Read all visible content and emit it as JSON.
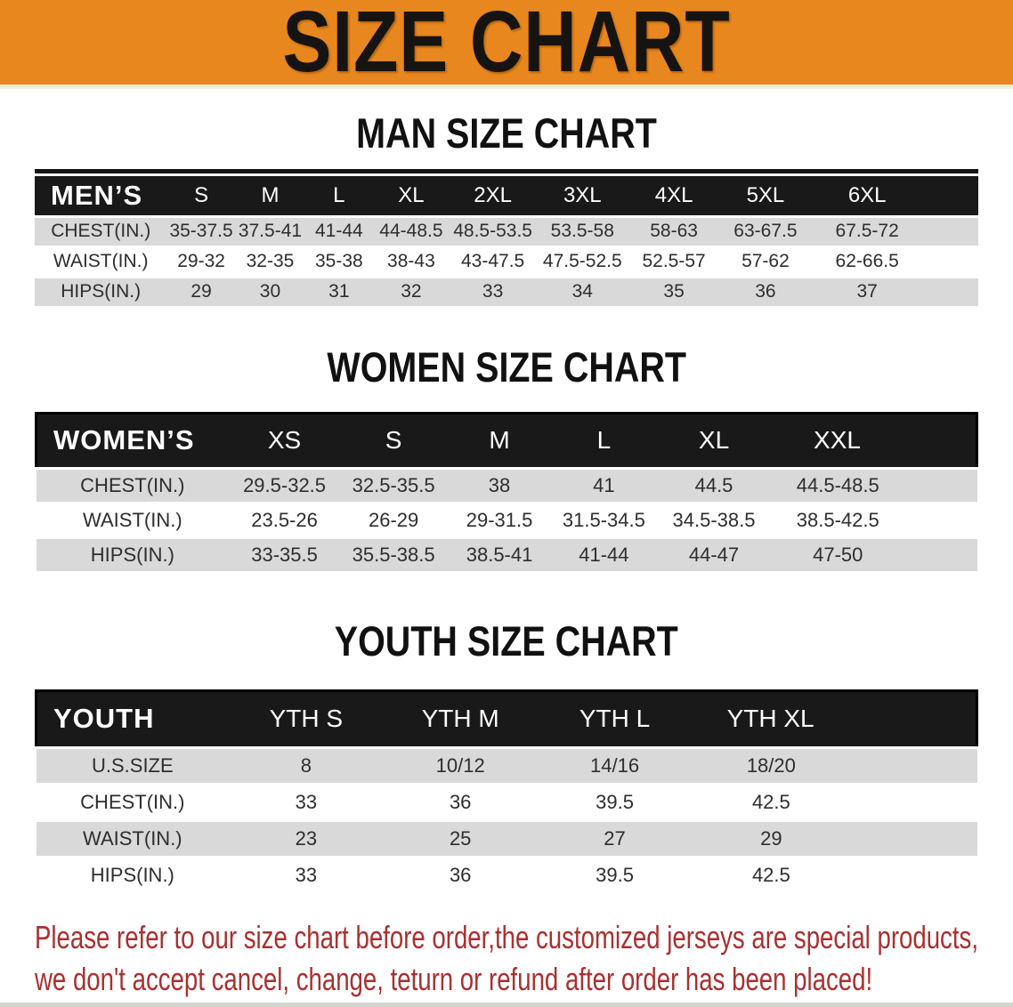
{
  "banner": {
    "title": "SIZE CHART"
  },
  "colors": {
    "banner_bg": "#E8871D",
    "header_bar": "#191919",
    "stripe_gray": "#D9D9D9",
    "footer_red": "#A93030"
  },
  "sections": [
    {
      "heading": "MAN SIZE CHART",
      "table": {
        "label": "MEN’S",
        "columns": [
          "S",
          "M",
          "L",
          "XL",
          "2XL",
          "3XL",
          "4XL",
          "5XL",
          "6XL"
        ],
        "rows": [
          {
            "label": "CHEST(IN.)",
            "values": [
              "35-37.5",
              "37.5-41",
              "41-44",
              "44-48.5",
              "48.5-53.5",
              "53.5-58",
              "58-63",
              "63-67.5",
              "67.5-72"
            ]
          },
          {
            "label": "WAIST(IN.)",
            "values": [
              "29-32",
              "32-35",
              "35-38",
              "38-43",
              "43-47.5",
              "47.5-52.5",
              "52.5-57",
              "57-62",
              "62-66.5"
            ]
          },
          {
            "label": "HIPS(IN.)",
            "values": [
              "29",
              "30",
              "31",
              "32",
              "33",
              "34",
              "35",
              "36",
              "37"
            ]
          }
        ]
      }
    },
    {
      "heading": "WOMEN SIZE CHART",
      "table": {
        "label": "WOMEN’S",
        "columns": [
          "XS",
          "S",
          "M",
          "L",
          "XL",
          "XXL"
        ],
        "rows": [
          {
            "label": "CHEST(IN.)",
            "values": [
              "29.5-32.5",
              "32.5-35.5",
              "38",
              "41",
              "44.5",
              "44.5-48.5"
            ]
          },
          {
            "label": "WAIST(IN.)",
            "values": [
              "23.5-26",
              "26-29",
              "29-31.5",
              "31.5-34.5",
              "34.5-38.5",
              "38.5-42.5"
            ]
          },
          {
            "label": "HIPS(IN.)",
            "values": [
              "33-35.5",
              "35.5-38.5",
              "38.5-41",
              "41-44",
              "44-47",
              "47-50"
            ]
          }
        ]
      }
    },
    {
      "heading": "YOUTH SIZE CHART",
      "table": {
        "label": "YOUTH",
        "columns": [
          "YTH S",
          "YTH M",
          "YTH L",
          "YTH XL"
        ],
        "rows": [
          {
            "label": "U.S.SIZE",
            "values": [
              "8",
              "10/12",
              "14/16",
              "18/20"
            ]
          },
          {
            "label": "CHEST(IN.)",
            "values": [
              "33",
              "36",
              "39.5",
              "42.5"
            ]
          },
          {
            "label": "WAIST(IN.)",
            "values": [
              "23",
              "25",
              "27",
              "29"
            ]
          },
          {
            "label": "HIPS(IN.)",
            "values": [
              "33",
              "36",
              "39.5",
              "42.5"
            ]
          }
        ]
      }
    }
  ],
  "footer": {
    "line1": "Please refer to our size chart before order,the customized jerseys are special products,",
    "line2": "we don't accept cancel, change, teturn or refund after order has been placed!"
  }
}
